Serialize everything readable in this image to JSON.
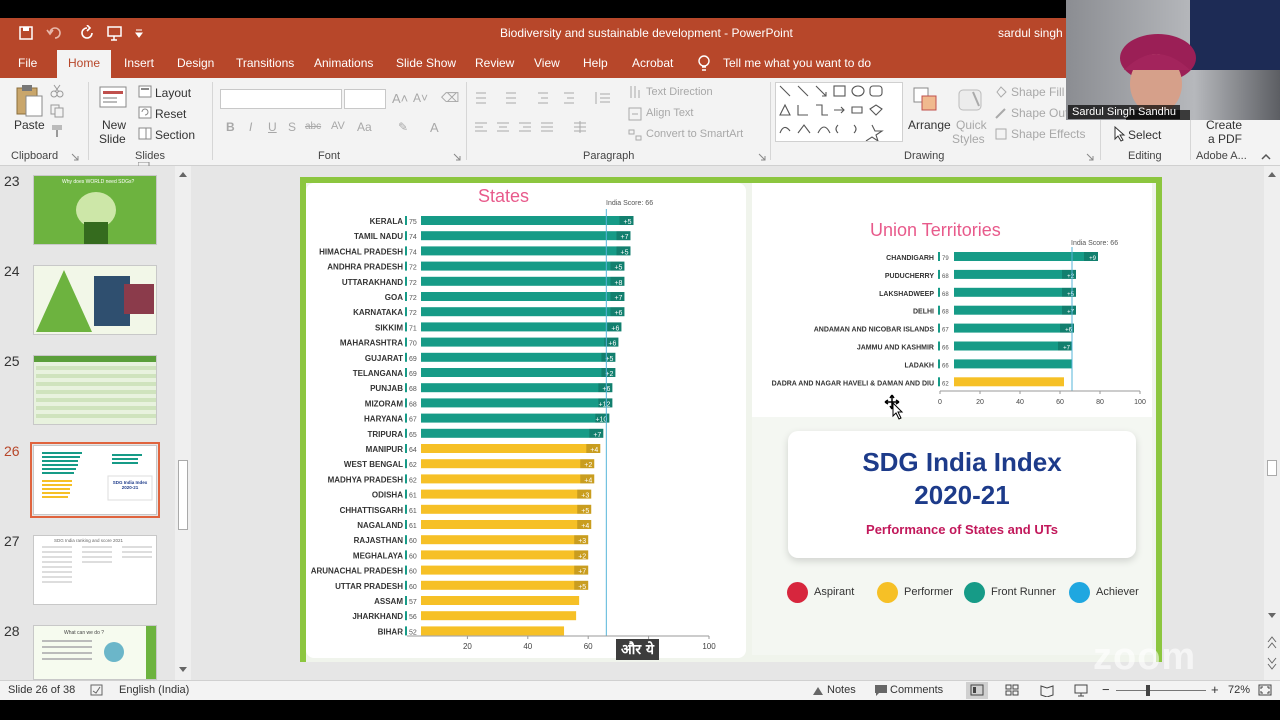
{
  "window": {
    "title": "Biodiversity and sustainable development  -  PowerPoint",
    "user": "sardul singh s",
    "qat_icons": [
      "save-icon",
      "undo-icon",
      "redo-icon",
      "present-icon",
      "customize-icon"
    ]
  },
  "tabs": [
    {
      "label": "File",
      "active": false
    },
    {
      "label": "Home",
      "active": true
    },
    {
      "label": "Insert",
      "active": false
    },
    {
      "label": "Design",
      "active": false
    },
    {
      "label": "Transitions",
      "active": false
    },
    {
      "label": "Animations",
      "active": false
    },
    {
      "label": "Slide Show",
      "active": false
    },
    {
      "label": "Review",
      "active": false
    },
    {
      "label": "View",
      "active": false
    },
    {
      "label": "Help",
      "active": false
    },
    {
      "label": "Acrobat",
      "active": false
    }
  ],
  "tell_me": "Tell me what you want to do",
  "ribbon": {
    "clipboard": {
      "group": "Clipboard",
      "paste": "Paste"
    },
    "slides": {
      "group": "Slides",
      "new_slide_1": "New",
      "new_slide_2": "Slide",
      "layout": "Layout",
      "reset": "Reset",
      "section": "Section"
    },
    "font": {
      "group": "Font",
      "buttons": [
        "B",
        "I",
        "U",
        "S",
        "abc",
        "AV",
        "Aa",
        "A"
      ]
    },
    "paragraph": {
      "group": "Paragraph",
      "text_direction": "Text Direction",
      "align_text": "Align Text",
      "convert": "Convert to SmartArt"
    },
    "drawing": {
      "group": "Drawing",
      "arrange": "Arrange",
      "quick_styles_1": "Quick",
      "quick_styles_2": "Styles",
      "shape_fill": "Shape Fill",
      "shape_outline": "Shape Outl",
      "shape_effects": "Shape Effects"
    },
    "editing": {
      "group": "Editing",
      "select": "Select"
    },
    "adobe": {
      "group": "Adobe A...",
      "create_1": "Create",
      "create_2": "a PDF"
    }
  },
  "video_overlay": {
    "name": "Sardul Singh Sandhu"
  },
  "thumbnails": [
    {
      "num": "23",
      "text": "Why does WORLD need SDGs?"
    },
    {
      "num": "24",
      "text": ""
    },
    {
      "num": "25",
      "text": ""
    },
    {
      "num": "26",
      "text": "SDG India Index 2020-21",
      "selected": true
    },
    {
      "num": "27",
      "text": "SDG India ranking and score 2021"
    },
    {
      "num": "28",
      "text": "What can we do ?"
    }
  ],
  "slide": {
    "states_title": "States",
    "india_score_label": "India Score: 66",
    "ut_title": "Union Territories",
    "ut_india_score_label": "India Score: 66",
    "card_title_1": "SDG India Index",
    "card_title_2": "2020-21",
    "card_subtitle": "Performance of States and UTs",
    "legend": [
      {
        "label": "Aspirant",
        "color": "#d7263d"
      },
      {
        "label": "Performer",
        "color": "#f6c026"
      },
      {
        "label": "Front Runner",
        "color": "#169b87"
      },
      {
        "label": "Achiever",
        "color": "#1fa7e0"
      }
    ],
    "overlay_hindi": "और ये"
  },
  "chart_data": [
    {
      "type": "bar",
      "title": "States",
      "orientation": "horizontal",
      "india_score": 66,
      "xticks": [
        20,
        40,
        60,
        80,
        100
      ],
      "xlim": [
        0,
        100
      ],
      "categories": [
        "KERALA",
        "TAMIL NADU",
        "HIMACHAL PRADESH",
        "ANDHRA PRADESH",
        "UTTARAKHAND",
        "GOA",
        "KARNATAKA",
        "SIKKIM",
        "MAHARASHTRA",
        "GUJARAT",
        "TELANGANA",
        "PUNJAB",
        "MIZORAM",
        "HARYANA",
        "TRIPURA",
        "MANIPUR",
        "WEST BENGAL",
        "MADHYA PRADESH",
        "ODISHA",
        "CHHATTISGARH",
        "NAGALAND",
        "RAJASTHAN",
        "MEGHALAYA",
        "ARUNACHAL PRADESH",
        "UTTAR PRADESH",
        "ASSAM",
        "JHARKHAND",
        "BIHAR"
      ],
      "values": [
        75,
        74,
        74,
        72,
        72,
        72,
        72,
        71,
        70,
        69,
        69,
        68,
        68,
        67,
        65,
        64,
        62,
        62,
        61,
        61,
        61,
        60,
        60,
        60,
        60,
        57,
        56,
        52
      ],
      "changes": [
        "+5",
        "+7",
        "+5",
        "+5",
        "+8",
        "+7",
        "+6",
        "+6",
        "+6",
        "+5",
        "+2",
        "+6",
        "+12",
        "+10",
        "+7",
        "+4",
        "+2",
        "+4",
        "+3",
        "+5",
        "+4",
        "+3",
        "+2",
        "+7",
        "+5",
        "",
        "",
        ""
      ],
      "categories_color": [
        "#169b87",
        "#169b87",
        "#169b87",
        "#169b87",
        "#169b87",
        "#169b87",
        "#169b87",
        "#169b87",
        "#169b87",
        "#169b87",
        "#169b87",
        "#169b87",
        "#169b87",
        "#169b87",
        "#169b87",
        "#f6c026",
        "#f6c026",
        "#f6c026",
        "#f6c026",
        "#f6c026",
        "#f6c026",
        "#f6c026",
        "#f6c026",
        "#f6c026",
        "#f6c026",
        "#f6c026",
        "#f6c026",
        "#f6c026"
      ]
    },
    {
      "type": "bar",
      "title": "Union Territories",
      "orientation": "horizontal",
      "india_score": 66,
      "xticks": [
        0,
        20,
        40,
        60,
        80,
        100
      ],
      "xlim": [
        0,
        100
      ],
      "categories": [
        "CHANDIGARH",
        "PUDUCHERRY",
        "LAKSHADWEEP",
        "DELHI",
        "ANDAMAN AND NICOBAR ISLANDS",
        "JAMMU AND KASHMIR",
        "LADAKH",
        "DADRA AND NAGAR HAVELI & DAMAN AND DIU"
      ],
      "values": [
        79,
        68,
        68,
        68,
        67,
        66,
        66,
        62
      ],
      "changes": [
        "+9",
        "+2",
        "+5",
        "+7",
        "+6",
        "+7",
        "",
        ""
      ],
      "categories_color": [
        "#169b87",
        "#169b87",
        "#169b87",
        "#169b87",
        "#169b87",
        "#169b87",
        "#169b87",
        "#f6c026"
      ]
    }
  ],
  "status": {
    "slide": "Slide 26 of 38",
    "language": "English (India)",
    "notes": "Notes",
    "comments": "Comments",
    "zoom": "72%"
  }
}
